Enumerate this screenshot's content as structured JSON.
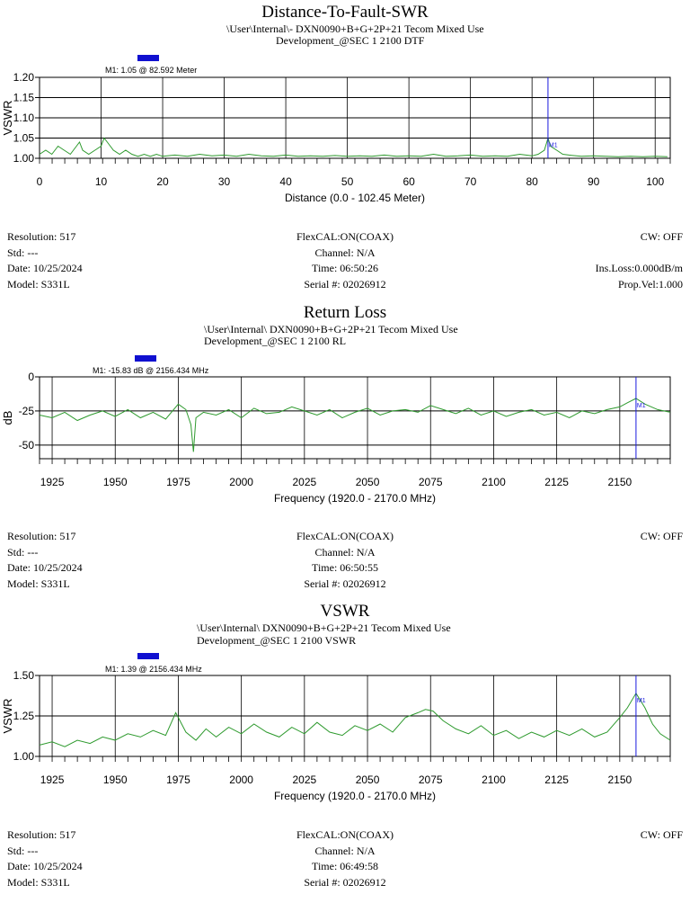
{
  "charts": [
    {
      "title": "Distance-To-Fault-SWR",
      "path_line": "\\User\\Internal\\- DXN0090+B+G+2P+21 Tecom Mixed Use",
      "location_line": "Development_@SEC 1 2100  DTF",
      "marker_label": "M1: 1.05  @ 82.592 Meter",
      "marker_tag": "M1",
      "info_left": [
        "Resolution:  517",
        "Std: ---",
        "Date: 10/25/2024",
        "Model: S331L"
      ],
      "info_center": [
        "FlexCAL:ON(COAX)",
        "Channel: N/A",
        "Time: 06:50:26",
        "Serial #: 02026912"
      ],
      "info_right": [
        "CW: OFF",
        "",
        "Ins.Loss:0.000dB/m",
        "Prop.Vel:1.000"
      ]
    },
    {
      "title": "Return Loss",
      "path_line": "\\User\\Internal\\ DXN0090+B+G+2P+21 Tecom Mixed Use",
      "location_line": "Development_@SEC 1 2100  RL",
      "marker_label": "M1: -15.83 dB @ 2156.434 MHz",
      "marker_tag": "M1",
      "info_left": [
        "Resolution:  517",
        "Std: ---",
        "Date: 10/25/2024",
        "Model: S331L"
      ],
      "info_center": [
        "FlexCAL:ON(COAX)",
        "Channel: N/A",
        "Time: 06:50:55",
        "Serial #: 02026912"
      ],
      "info_right": [
        "CW: OFF",
        "",
        "",
        ""
      ]
    },
    {
      "title": "VSWR",
      "path_line": "\\User\\Internal\\ DXN0090+B+G+2P+21 Tecom Mixed Use",
      "location_line": "Development_@SEC 1 2100 VSWR",
      "marker_label": "M1: 1.39  @ 2156.434 MHz",
      "marker_tag": "M1",
      "info_left": [
        "Resolution:  517",
        "Std: ---",
        "Date: 10/25/2024",
        "Model: S331L"
      ],
      "info_center": [
        "FlexCAL:ON(COAX)",
        "Channel: N/A",
        "Time: 06:49:58",
        "Serial #: 02026912"
      ],
      "info_right": [
        "CW: OFF",
        "",
        "",
        ""
      ]
    }
  ],
  "colors": {
    "trace": "#2e9a2e",
    "marker": "#1a1adf",
    "grid": "#000000"
  },
  "chart_data": [
    {
      "type": "line",
      "xlabel": "Distance (0.0 - 102.45 Meter)",
      "ylabel": "VSWR",
      "xlim": [
        0,
        102.45
      ],
      "ylim": [
        1.0,
        1.2
      ],
      "xticks": [
        "0",
        "10",
        "20",
        "30",
        "40",
        "50",
        "60",
        "70",
        "80",
        "90",
        "100"
      ],
      "xtick_values": [
        0,
        10,
        20,
        30,
        40,
        50,
        60,
        70,
        80,
        90,
        100
      ],
      "yticks": [
        "1.00",
        "1.05",
        "1.10",
        "1.15",
        "1.20"
      ],
      "ytick_values": [
        1.0,
        1.05,
        1.1,
        1.15,
        1.2
      ],
      "grid": true,
      "marker": {
        "x": 82.592,
        "y": 1.05
      },
      "series": [
        {
          "x": [
            0,
            1,
            2,
            3,
            4,
            5,
            6,
            6.5,
            7,
            8,
            9,
            10,
            10.5,
            11,
            12,
            13,
            14,
            15,
            16,
            17,
            18,
            19,
            20,
            22,
            24,
            26,
            28,
            30,
            32,
            34,
            36,
            38,
            40,
            42,
            44,
            46,
            48,
            50,
            52,
            54,
            56,
            58,
            60,
            62,
            64,
            66,
            68,
            70,
            72,
            74,
            76,
            78,
            80,
            81,
            82,
            82.6,
            83,
            84,
            85,
            86,
            88,
            90,
            92,
            94,
            96,
            98,
            100,
            102
          ],
          "y": [
            1.01,
            1.02,
            1.01,
            1.03,
            1.02,
            1.01,
            1.03,
            1.04,
            1.02,
            1.01,
            1.02,
            1.03,
            1.05,
            1.04,
            1.02,
            1.01,
            1.02,
            1.01,
            1.005,
            1.01,
            1.005,
            1.01,
            1.005,
            1.008,
            1.005,
            1.01,
            1.006,
            1.008,
            1.005,
            1.01,
            1.006,
            1.005,
            1.008,
            1.005,
            1.006,
            1.005,
            1.007,
            1.005,
            1.006,
            1.005,
            1.008,
            1.005,
            1.006,
            1.005,
            1.01,
            1.005,
            1.006,
            1.008,
            1.005,
            1.006,
            1.005,
            1.01,
            1.006,
            1.01,
            1.02,
            1.05,
            1.03,
            1.02,
            1.01,
            1.008,
            1.005,
            1.006,
            1.005,
            1.004,
            1.005,
            1.004,
            1.005,
            1.004
          ]
        }
      ]
    },
    {
      "type": "line",
      "xlabel": "Frequency (1920.0 - 2170.0 MHz)",
      "ylabel": "dB",
      "xlim": [
        1920,
        2170
      ],
      "ylim": [
        -60,
        0
      ],
      "xticks": [
        "1925",
        "1950",
        "1975",
        "2000",
        "2025",
        "2050",
        "2075",
        "2100",
        "2125",
        "2150"
      ],
      "xtick_values": [
        1925,
        1950,
        1975,
        2000,
        2025,
        2050,
        2075,
        2100,
        2125,
        2150
      ],
      "yticks": [
        "0",
        "-25",
        "-50"
      ],
      "ytick_values": [
        0,
        -25,
        -50
      ],
      "grid": true,
      "marker": {
        "x": 2156.434,
        "y": -15.83
      },
      "series": [
        {
          "x": [
            1920,
            1925,
            1930,
            1935,
            1940,
            1945,
            1950,
            1955,
            1960,
            1965,
            1970,
            1975,
            1978,
            1980,
            1981,
            1982,
            1985,
            1990,
            1995,
            2000,
            2005,
            2010,
            2015,
            2020,
            2025,
            2030,
            2035,
            2040,
            2045,
            2050,
            2055,
            2060,
            2065,
            2070,
            2075,
            2080,
            2085,
            2090,
            2095,
            2100,
            2105,
            2110,
            2115,
            2120,
            2125,
            2130,
            2135,
            2140,
            2145,
            2150,
            2153,
            2156.434,
            2160,
            2165,
            2170
          ],
          "y": [
            -28,
            -30,
            -26,
            -32,
            -28,
            -25,
            -29,
            -24,
            -30,
            -26,
            -31,
            -20,
            -24,
            -35,
            -55,
            -30,
            -26,
            -28,
            -24,
            -30,
            -23,
            -27,
            -26,
            -22,
            -25,
            -28,
            -24,
            -30,
            -26,
            -23,
            -28,
            -25,
            -24,
            -26,
            -21,
            -24,
            -27,
            -23,
            -28,
            -25,
            -29,
            -26,
            -24,
            -28,
            -26,
            -30,
            -25,
            -27,
            -24,
            -22,
            -19,
            -15.83,
            -20,
            -24,
            -26
          ]
        }
      ]
    },
    {
      "type": "line",
      "xlabel": "Frequency (1920.0 - 2170.0 MHz)",
      "ylabel": "VSWR",
      "xlim": [
        1920,
        2170
      ],
      "ylim": [
        1.0,
        1.5
      ],
      "xticks": [
        "1925",
        "1950",
        "1975",
        "2000",
        "2025",
        "2050",
        "2075",
        "2100",
        "2125",
        "2150"
      ],
      "xtick_values": [
        1925,
        1950,
        1975,
        2000,
        2025,
        2050,
        2075,
        2100,
        2125,
        2150
      ],
      "yticks": [
        "1.00",
        "1.25",
        "1.50"
      ],
      "ytick_values": [
        1.0,
        1.25,
        1.5
      ],
      "grid": true,
      "marker": {
        "x": 2156.434,
        "y": 1.39
      },
      "series": [
        {
          "x": [
            1920,
            1925,
            1930,
            1935,
            1940,
            1945,
            1950,
            1955,
            1960,
            1965,
            1970,
            1974,
            1978,
            1982,
            1986,
            1990,
            1995,
            2000,
            2005,
            2010,
            2015,
            2020,
            2025,
            2030,
            2035,
            2040,
            2045,
            2050,
            2055,
            2060,
            2065,
            2070,
            2073,
            2076,
            2080,
            2085,
            2090,
            2095,
            2100,
            2105,
            2110,
            2115,
            2120,
            2125,
            2130,
            2135,
            2140,
            2145,
            2150,
            2153,
            2156.434,
            2160,
            2163,
            2166,
            2170
          ],
          "y": [
            1.07,
            1.09,
            1.06,
            1.1,
            1.08,
            1.12,
            1.1,
            1.14,
            1.12,
            1.16,
            1.13,
            1.27,
            1.15,
            1.1,
            1.17,
            1.12,
            1.18,
            1.14,
            1.2,
            1.15,
            1.12,
            1.18,
            1.14,
            1.21,
            1.15,
            1.13,
            1.19,
            1.16,
            1.2,
            1.15,
            1.24,
            1.27,
            1.29,
            1.28,
            1.22,
            1.17,
            1.14,
            1.19,
            1.13,
            1.16,
            1.11,
            1.15,
            1.12,
            1.16,
            1.13,
            1.17,
            1.12,
            1.15,
            1.24,
            1.3,
            1.39,
            1.3,
            1.2,
            1.14,
            1.1
          ]
        }
      ]
    }
  ]
}
